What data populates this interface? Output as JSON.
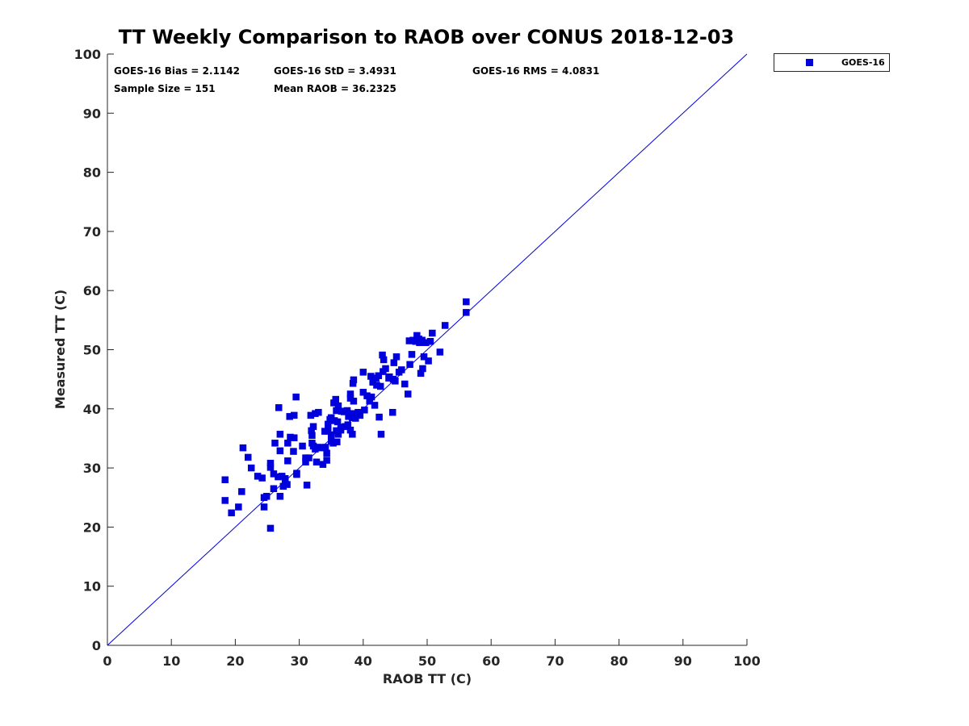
{
  "colors": {
    "marker": "#0000dd",
    "reference_line": "#0000dd",
    "axis": "#262626",
    "background": "#ffffff"
  },
  "chart_data": {
    "type": "scatter",
    "title": "TT Weekly Comparison to RAOB over CONUS 2018-12-03",
    "xlabel": "RAOB TT (C)",
    "ylabel": "Measured TT (C)",
    "xlim": [
      0,
      100
    ],
    "ylim": [
      0,
      100
    ],
    "xticks": [
      0,
      10,
      20,
      30,
      40,
      50,
      60,
      70,
      80,
      90,
      100
    ],
    "yticks": [
      0,
      10,
      20,
      30,
      40,
      50,
      60,
      70,
      80,
      90,
      100
    ],
    "grid": false,
    "legend_position": "outside-top-right",
    "reference_line": {
      "from": [
        0,
        0
      ],
      "to": [
        100,
        100
      ]
    },
    "stats": [
      "GOES-16 Bias = 2.1142",
      "GOES-16 StD = 3.4931",
      "GOES-16 RMS = 4.0831",
      "Sample Size = 151",
      "Mean RAOB = 36.2325"
    ],
    "series": [
      {
        "name": "GOES-16",
        "marker": "square",
        "points": [
          [
            18.4,
            28.0
          ],
          [
            18.4,
            24.5
          ],
          [
            19.4,
            22.4
          ],
          [
            20.5,
            23.4
          ],
          [
            21.0,
            26.0
          ],
          [
            21.2,
            33.4
          ],
          [
            22.0,
            31.8
          ],
          [
            22.5,
            30.0
          ],
          [
            23.5,
            28.6
          ],
          [
            24.2,
            28.3
          ],
          [
            24.5,
            25.0
          ],
          [
            24.5,
            23.4
          ],
          [
            24.9,
            25.2
          ],
          [
            25.5,
            19.8
          ],
          [
            25.5,
            30.8
          ],
          [
            25.5,
            30.1
          ],
          [
            26.0,
            26.5
          ],
          [
            26.0,
            29.0
          ],
          [
            26.2,
            34.2
          ],
          [
            26.7,
            28.5
          ],
          [
            26.8,
            40.2
          ],
          [
            27.0,
            25.2
          ],
          [
            27.0,
            32.9
          ],
          [
            27.0,
            35.7
          ],
          [
            27.3,
            28.6
          ],
          [
            27.5,
            26.9
          ],
          [
            27.8,
            28.2
          ],
          [
            27.8,
            27.7
          ],
          [
            28.1,
            27.2
          ],
          [
            28.2,
            34.2
          ],
          [
            28.2,
            31.2
          ],
          [
            28.5,
            38.7
          ],
          [
            28.6,
            35.2
          ],
          [
            29.1,
            32.8
          ],
          [
            29.2,
            38.9
          ],
          [
            29.2,
            35.1
          ],
          [
            29.5,
            42.0
          ],
          [
            29.6,
            28.9
          ],
          [
            29.6,
            29.1
          ],
          [
            30.5,
            33.7
          ],
          [
            31.0,
            31.7
          ],
          [
            31.0,
            31.0
          ],
          [
            31.2,
            27.1
          ],
          [
            31.5,
            31.7
          ],
          [
            31.8,
            38.9
          ],
          [
            31.9,
            36.3
          ],
          [
            32.0,
            35.5
          ],
          [
            32.0,
            34.2
          ],
          [
            32.2,
            33.7
          ],
          [
            32.2,
            37.0
          ],
          [
            32.5,
            33.2
          ],
          [
            32.5,
            39.2
          ],
          [
            32.7,
            31.0
          ],
          [
            33.0,
            33.5
          ],
          [
            33.0,
            39.4
          ],
          [
            33.5,
            33.4
          ],
          [
            33.7,
            30.6
          ],
          [
            34.0,
            36.2
          ],
          [
            34.1,
            33.5
          ],
          [
            34.3,
            32.5
          ],
          [
            34.3,
            31.3
          ],
          [
            34.5,
            36.7
          ],
          [
            34.5,
            37.4
          ],
          [
            34.8,
            38.2
          ],
          [
            35.0,
            34.5
          ],
          [
            35.0,
            35.6
          ],
          [
            35.0,
            38.5
          ],
          [
            35.3,
            34.2
          ],
          [
            35.4,
            41.0
          ],
          [
            35.5,
            38.0
          ],
          [
            35.7,
            41.6
          ],
          [
            35.8,
            36.3
          ],
          [
            35.8,
            39.7
          ],
          [
            35.9,
            34.4
          ],
          [
            36.0,
            37.8
          ],
          [
            36.1,
            35.7
          ],
          [
            36.1,
            40.5
          ],
          [
            36.5,
            36.4
          ],
          [
            36.5,
            36.9
          ],
          [
            36.6,
            39.6
          ],
          [
            37.0,
            39.5
          ],
          [
            37.2,
            37.0
          ],
          [
            37.5,
            39.7
          ],
          [
            37.6,
            37.3
          ],
          [
            37.7,
            38.7
          ],
          [
            38.0,
            41.8
          ],
          [
            38.0,
            42.5
          ],
          [
            38.0,
            36.4
          ],
          [
            38.2,
            39.2
          ],
          [
            38.3,
            35.7
          ],
          [
            38.3,
            38.5
          ],
          [
            38.4,
            44.3
          ],
          [
            38.5,
            44.9
          ],
          [
            38.5,
            41.3
          ],
          [
            38.8,
            38.4
          ],
          [
            39.2,
            39.4
          ],
          [
            39.5,
            38.9
          ],
          [
            40.0,
            42.8
          ],
          [
            40.0,
            46.2
          ],
          [
            40.2,
            39.8
          ],
          [
            40.6,
            42.2
          ],
          [
            41.0,
            41.3
          ],
          [
            41.2,
            45.5
          ],
          [
            41.3,
            42.0
          ],
          [
            41.5,
            44.5
          ],
          [
            41.8,
            40.6
          ],
          [
            42.0,
            45.2
          ],
          [
            42.1,
            44.0
          ],
          [
            42.4,
            45.6
          ],
          [
            42.5,
            38.6
          ],
          [
            42.7,
            43.8
          ],
          [
            42.8,
            35.7
          ],
          [
            43.0,
            49.1
          ],
          [
            43.1,
            46.3
          ],
          [
            43.2,
            48.3
          ],
          [
            43.5,
            46.8
          ],
          [
            44.0,
            45.2
          ],
          [
            44.1,
            45.4
          ],
          [
            44.6,
            39.4
          ],
          [
            44.7,
            45.0
          ],
          [
            44.8,
            47.8
          ],
          [
            45.0,
            44.7
          ],
          [
            45.2,
            48.8
          ],
          [
            45.6,
            46.2
          ],
          [
            46.0,
            46.6
          ],
          [
            46.5,
            44.2
          ],
          [
            47.0,
            42.5
          ],
          [
            47.2,
            51.5
          ],
          [
            47.3,
            47.5
          ],
          [
            47.6,
            49.2
          ],
          [
            47.8,
            51.6
          ],
          [
            48.2,
            51.4
          ],
          [
            48.4,
            52.4
          ],
          [
            48.7,
            51.8
          ],
          [
            48.8,
            51.2
          ],
          [
            49.0,
            46.0
          ],
          [
            49.2,
            51.6
          ],
          [
            49.3,
            46.8
          ],
          [
            49.5,
            48.8
          ],
          [
            49.8,
            51.2
          ],
          [
            50.2,
            48.1
          ],
          [
            50.5,
            51.4
          ],
          [
            50.8,
            52.8
          ],
          [
            52.0,
            49.6
          ],
          [
            52.8,
            54.1
          ],
          [
            56.1,
            58.1
          ],
          [
            56.1,
            56.3
          ]
        ]
      }
    ]
  }
}
